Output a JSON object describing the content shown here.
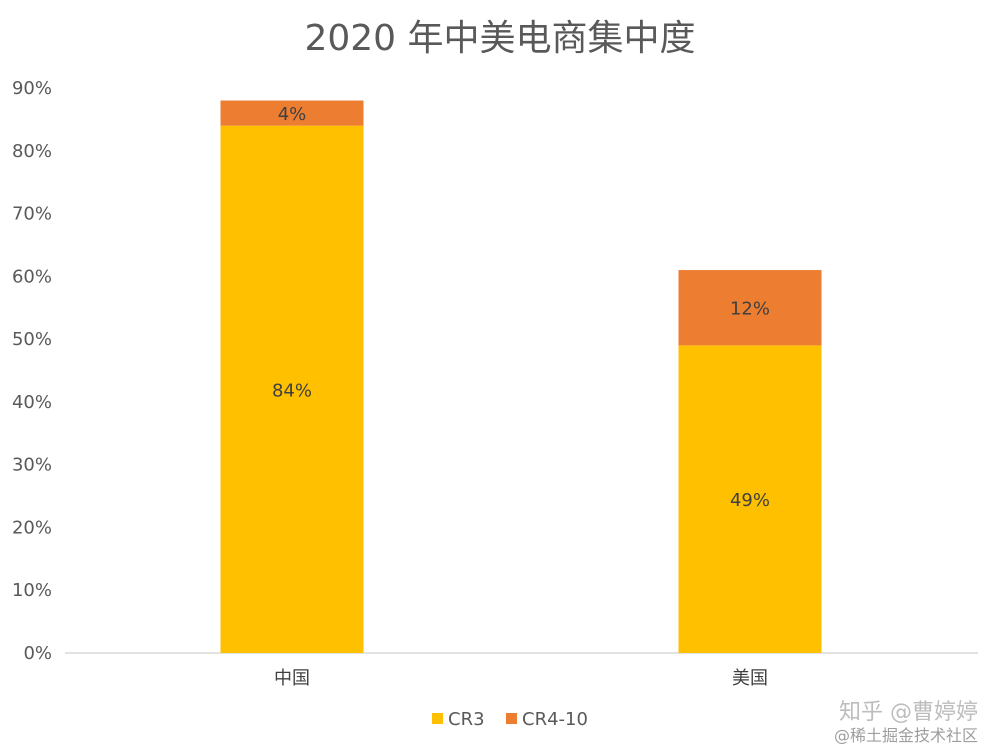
{
  "chart_data": {
    "type": "bar",
    "stacked": true,
    "title": "2020 年中美电商集中度",
    "categories": [
      "中国",
      "美国"
    ],
    "series": [
      {
        "name": "CR3",
        "values": [
          84,
          49
        ],
        "labels": [
          "84%",
          "49%"
        ],
        "color": "#FFC000"
      },
      {
        "name": "CR4-10",
        "values": [
          4,
          12
        ],
        "labels": [
          "4%",
          "12%"
        ],
        "color": "#ED7D31"
      }
    ],
    "ylim": [
      0,
      90
    ],
    "yticks": [
      "0%",
      "10%",
      "20%",
      "30%",
      "40%",
      "50%",
      "60%",
      "70%",
      "80%",
      "90%"
    ],
    "grid": false,
    "legend": "bottom"
  },
  "watermark": {
    "line1": "知乎 @曹婷婷",
    "line2": "@稀土掘金技术社区"
  }
}
